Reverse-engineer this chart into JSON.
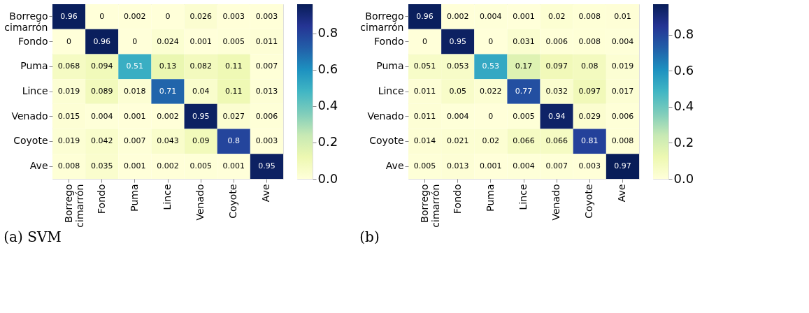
{
  "chart_data": [
    {
      "type": "heatmap",
      "title": "(a) SVM",
      "categories": [
        "Borrego cimarrón",
        "Fondo",
        "Puma",
        "Lince",
        "Venado",
        "Coyote",
        "Ave"
      ],
      "y_categories": [
        "Borrego cimarrón",
        "Fondo",
        "Puma",
        "Lince",
        "Venado",
        "Coyote",
        "Ave"
      ],
      "cells": [
        [
          0.96,
          0,
          0.002,
          0,
          0.026,
          0.003,
          0.003
        ],
        [
          0,
          0.96,
          0,
          0.024,
          0.001,
          0.005,
          0.011
        ],
        [
          0.068,
          0.094,
          0.51,
          0.13,
          0.082,
          0.11,
          0.007
        ],
        [
          0.019,
          0.089,
          0.018,
          0.71,
          0.04,
          0.11,
          0.013
        ],
        [
          0.015,
          0.004,
          0.001,
          0.002,
          0.95,
          0.027,
          0.006
        ],
        [
          0.019,
          0.042,
          0.007,
          0.043,
          0.09,
          0.8,
          0.003
        ],
        [
          0.008,
          0.035,
          0.001,
          0.002,
          0.005,
          0.001,
          0.95
        ]
      ],
      "data_labels": true,
      "clim": [
        0,
        0.96
      ],
      "cticks": [
        {
          "value": 0,
          "label": "0.0"
        },
        0.2,
        0.4,
        0.6,
        0.8
      ]
    },
    {
      "type": "heatmap",
      "title": "(b)",
      "categories": [
        "Borrego cimarrón",
        "Fondo",
        "Puma",
        "Lince",
        "Venado",
        "Coyote",
        "Ave"
      ],
      "y_categories": [
        "Borrego cimarrón",
        "Fondo",
        "Puma",
        "Lince",
        "Venado",
        "Coyote",
        "Ave"
      ],
      "cells": [
        [
          0.96,
          0.002,
          0.004,
          0.001,
          0.02,
          0.008,
          0.01
        ],
        [
          0,
          0.95,
          0,
          0.031,
          0.006,
          0.008,
          0.004
        ],
        [
          0.051,
          0.053,
          0.53,
          0.17,
          0.097,
          0.08,
          0.019
        ],
        [
          0.011,
          0.05,
          0.022,
          0.77,
          0.032,
          0.097,
          0.017
        ],
        [
          0.011,
          0.004,
          0,
          0.005,
          0.94,
          0.029,
          0.006
        ],
        [
          0.014,
          0.021,
          0.02,
          0.066,
          0.066,
          0.81,
          0.008
        ],
        [
          0.005,
          0.013,
          0.001,
          0.004,
          0.007,
          0.003,
          0.97
        ]
      ],
      "data_labels": true,
      "clim": [
        0,
        0.97
      ],
      "cticks": [
        {
          "value": 0,
          "label": "0.0"
        },
        0.2,
        0.4,
        0.6,
        0.8
      ]
    }
  ]
}
